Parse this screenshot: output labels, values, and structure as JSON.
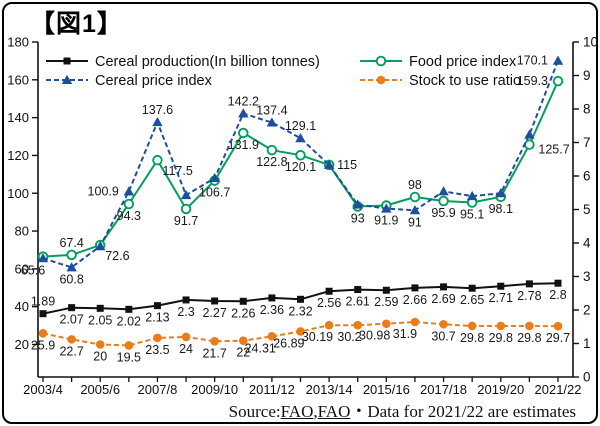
{
  "title": "【図1】",
  "source": {
    "parts": [
      {
        "text": "Source:",
        "underline": false
      },
      {
        "text": "FAO",
        "underline": true
      },
      {
        "text": ",",
        "underline": false
      },
      {
        "text": "FAO",
        "underline": true
      },
      {
        "text": "・Data for 2021/22 are estimates",
        "underline": false
      }
    ]
  },
  "chart_data": {
    "type": "line",
    "title": "【図1】",
    "categories": [
      "2003/4",
      "2004/5",
      "2005/6",
      "2006/7",
      "2007/8",
      "2008/9",
      "2009/10",
      "2010/11",
      "2011/12",
      "2012/13",
      "2013/14",
      "2014/15",
      "2015/16",
      "2016/17",
      "2017/18",
      "2018/19",
      "2019/20",
      "2020/21",
      "2021/22"
    ],
    "x_tick_labels": [
      "2003/4",
      "2005/6",
      "2007/8",
      "2009/10",
      "2011/12",
      "2013/14",
      "2015/16",
      "2017/18",
      "2019/20",
      "2021/22"
    ],
    "left_axis": {
      "min": 20,
      "max": 180,
      "ticks": [
        180,
        160,
        140,
        120,
        100,
        80,
        60,
        40,
        20
      ]
    },
    "right_axis": {
      "min": 0,
      "max": 10,
      "ticks": [
        10,
        9,
        8,
        7,
        6,
        5,
        4,
        3,
        2,
        1,
        0
      ]
    },
    "grid": false,
    "legend_position": "top-inside",
    "series": [
      {
        "key": "cereal-production",
        "name": "Cereal production(In billion tonnes)",
        "axis": "right",
        "color": "#111111",
        "line": "solid",
        "marker": "square",
        "values": [
          1.89,
          2.07,
          2.05,
          2.02,
          2.13,
          2.3,
          2.27,
          2.26,
          2.36,
          2.32,
          2.56,
          2.61,
          2.59,
          2.66,
          2.69,
          2.65,
          2.71,
          2.78,
          2.8
        ],
        "labels": [
          "1.89",
          "2.07",
          "2.05",
          "2.02",
          "2.13",
          "2.3",
          "2.27",
          "2.26",
          "2.36",
          "2.32",
          "2.56",
          "2.61",
          "2.59",
          "2.66",
          "2.69",
          "2.65",
          "2.71",
          "2.78",
          "2.8"
        ],
        "label_pos": [
          "above",
          "below",
          "below",
          "below",
          "below",
          "below",
          "below",
          "below",
          "below",
          "below",
          "below",
          "below",
          "below",
          "below",
          "below",
          "below",
          "below",
          "below",
          "below"
        ]
      },
      {
        "key": "cereal-price-index",
        "name": "Cereal price index",
        "axis": "left",
        "color": "#1e4f9c",
        "line": "dashed",
        "marker": "triangle",
        "values": [
          65.6,
          60.8,
          72,
          100.9,
          137.6,
          99,
          108,
          142.2,
          137.4,
          129.1,
          115,
          94,
          91.9,
          91,
          101,
          98.5,
          100,
          131,
          170.1
        ],
        "labels": [
          "65.6",
          "60.8",
          null,
          "100.9",
          "137.6",
          null,
          null,
          "142.2",
          "137.4",
          "129.1",
          "115",
          null,
          "91.9",
          "91",
          null,
          null,
          null,
          null,
          "170.1"
        ],
        "label_pos": [
          "below-left",
          "below",
          null,
          "left",
          "above",
          null,
          null,
          "above",
          "above",
          "above",
          "right",
          null,
          "below",
          "below",
          null,
          null,
          null,
          null,
          "left"
        ]
      },
      {
        "key": "food-price-index",
        "name": "Food price index",
        "axis": "left",
        "color": "#009f5c",
        "line": "solid",
        "marker": "circle-open",
        "values": [
          66.5,
          67.4,
          72.6,
          94.3,
          117.5,
          91.7,
          106.7,
          131.9,
          122.8,
          120.1,
          115,
          93,
          93.5,
          98,
          95.9,
          95.1,
          98.1,
          125.7,
          159.3
        ],
        "labels": [
          null,
          "67.4",
          "72.6",
          "94.3",
          "117.5",
          "91.7",
          "106.7",
          "131.9",
          "122.8",
          "120.1",
          null,
          "93",
          null,
          "98",
          "95.9",
          "95.1",
          "98.1",
          "125.7",
          "159.3"
        ],
        "label_pos": [
          null,
          "above",
          "below-right",
          "below",
          "below-right",
          "below",
          "below",
          "below",
          "below",
          "below",
          null,
          "below",
          null,
          "above",
          "below",
          "below",
          "below",
          "right-below",
          "left"
        ]
      },
      {
        "key": "stock-to-use-ratio",
        "name": "Stock to use ratio",
        "axis": "left",
        "color": "#e87d1a",
        "line": "dashed",
        "marker": "circle-filled",
        "values": [
          25.9,
          22.7,
          20,
          19.5,
          23.5,
          24,
          21.7,
          22,
          24.31,
          26.89,
          30.19,
          30.2,
          30.98,
          31.9,
          30.7,
          29.8,
          29.8,
          29.8,
          29.7
        ],
        "labels": [
          "25.9",
          "22.7",
          "20",
          "19.5",
          "23.5",
          "24",
          "21.7",
          "22",
          "24.31",
          "26.89",
          "30.19",
          "30.2",
          "30.98",
          "31.9",
          "30.7",
          "29.8",
          "29.8",
          "29.8",
          "29.7"
        ],
        "label_pos": [
          "below",
          "below",
          "below",
          "below",
          "below",
          "below",
          "below",
          "below",
          "below-end",
          "below-end",
          "below-end",
          "below-end",
          "below-end",
          "below-left",
          "below",
          "below",
          "below",
          "below",
          "below"
        ]
      }
    ]
  }
}
